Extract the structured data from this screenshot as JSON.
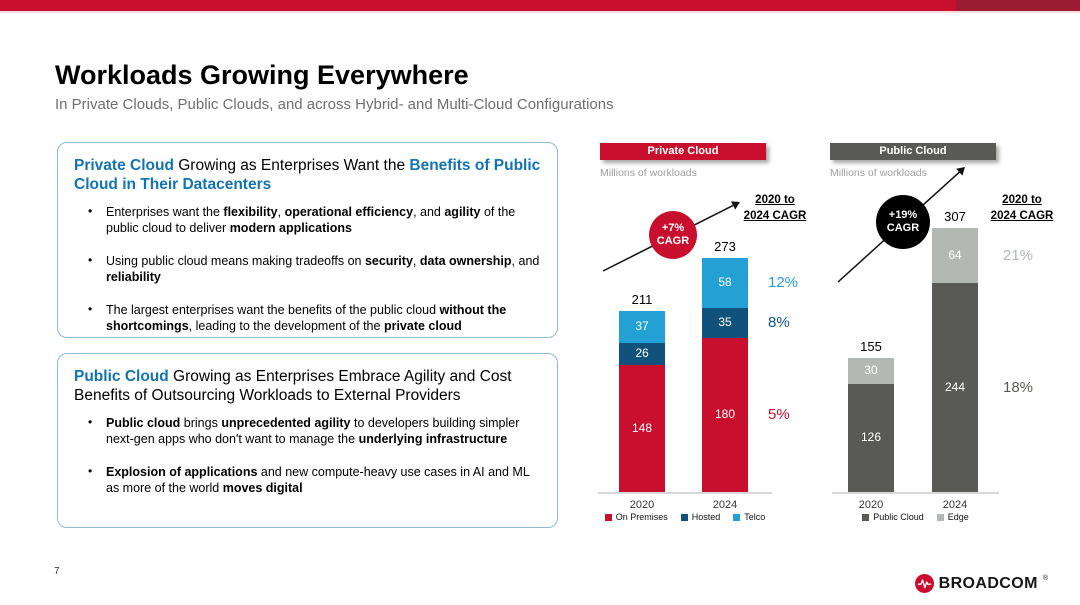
{
  "slide": {
    "title": "Workloads Growing Everywhere",
    "subtitle": "In Private Clouds, Public Clouds, and across Hybrid- and Multi-Cloud Configurations",
    "page_number": "7",
    "logo_text": "BROADCOM",
    "logo_reg": "®"
  },
  "colors": {
    "accent_red": "#C8102E",
    "accent_dark_red": "#9B1B32",
    "heading_blue": "#1273B5",
    "dark_blue": "#10527C",
    "light_blue": "#23A0D4",
    "dark_gray": "#595955",
    "light_gray": "#B3B8B4"
  },
  "boxes": [
    {
      "heading_html": "<b class=\"blue\">Private Cloud</b> Growing as Enterprises Want the <b class=\"blue\">Benefits of Public Cloud in Their Datacenters</b>",
      "bullets_html": [
        "Enterprises want the <b>flexibility</b>, <b>operational efficiency</b>, and <b>agility</b> of the public cloud to deliver <b>modern applications</b>",
        "Using public cloud means making tradeoffs on <b>security</b>, <b>data ownership</b>, and <b>reliability</b>",
        "The largest enterprises want the benefits of the public cloud <b>without the shortcomings</b>, leading to the development of the <b>private cloud</b>"
      ]
    },
    {
      "heading_html": "<b class=\"blue\">Public Cloud</b> Growing as Enterprises Embrace Agility and Cost Benefits of Outsourcing Workloads to External Providers",
      "bullets_html": [
        "<b>Public cloud</b> brings <b>unprecedented agility</b> to developers building simpler next-gen apps who don't want to manage the <b>underlying infrastructure</b>",
        "<b>Explosion of applications</b> and new compute-heavy use cases in AI and ML as more of the world <b>moves digital</b>"
      ]
    }
  ],
  "chart_data": [
    {
      "type": "bar",
      "subtype": "stacked",
      "title": "Private Cloud",
      "header_bg": "#C8102E",
      "units_label": "Millions of workloads",
      "categories": [
        "2020",
        "2024"
      ],
      "series": [
        {
          "name": "On Premises",
          "color": "#C8102E",
          "values": [
            148,
            180
          ],
          "cagr": "5%",
          "cagr_color": "#C8102E"
        },
        {
          "name": "Hosted",
          "color": "#10527C",
          "values": [
            26,
            35
          ],
          "cagr": "8%",
          "cagr_color": "#10527C"
        },
        {
          "name": "Telco",
          "color": "#23A0D4",
          "values": [
            37,
            58
          ],
          "cagr": "12%",
          "cagr_color": "#23A0D4"
        }
      ],
      "totals": [
        211,
        273
      ],
      "cagr_badge": {
        "line1": "+7%",
        "line2": "CAGR",
        "bg": "#C8102E"
      },
      "cagr_column_header": [
        "2020 to",
        "2024 CAGR"
      ],
      "legend_position": "bottom",
      "ylim": [
        0,
        320
      ],
      "grid": false
    },
    {
      "type": "bar",
      "subtype": "stacked",
      "title": "Public Cloud",
      "header_bg": "#595955",
      "units_label": "Millions of workloads",
      "categories": [
        "2020",
        "2024"
      ],
      "series": [
        {
          "name": "Public Cloud",
          "color": "#595955",
          "values": [
            126,
            244
          ],
          "cagr": "18%",
          "cagr_color": "#595955"
        },
        {
          "name": "Edge",
          "color": "#B3B8B4",
          "values": [
            30,
            64
          ],
          "cagr": "21%",
          "cagr_color": "#B3B8B4"
        }
      ],
      "totals": [
        155,
        307
      ],
      "cagr_badge": {
        "line1": "+19%",
        "line2": "CAGR",
        "bg": "#000000"
      },
      "cagr_column_header": [
        "2020 to",
        "2024 CAGR"
      ],
      "legend_position": "bottom",
      "ylim": [
        0,
        360
      ],
      "grid": false
    }
  ]
}
